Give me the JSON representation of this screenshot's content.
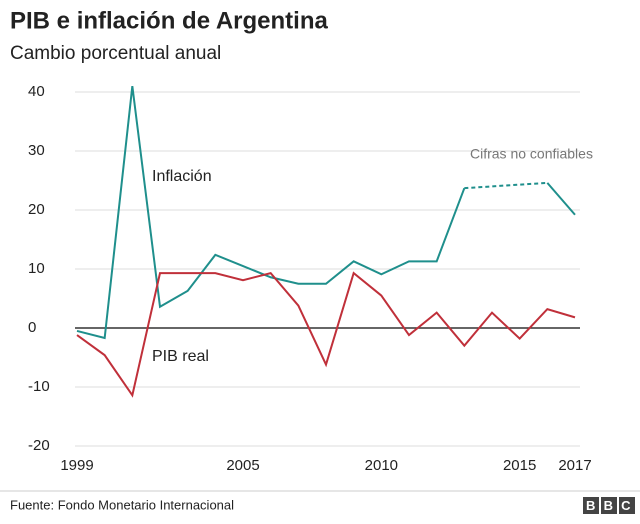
{
  "chart_data": {
    "type": "line",
    "title": "PIB e inflación de Argentina",
    "subtitle": "Cambio porcentual anual",
    "x": [
      1999,
      2000,
      2001,
      2002,
      2003,
      2004,
      2005,
      2006,
      2007,
      2008,
      2009,
      2010,
      2011,
      2012,
      2013,
      2014,
      2015,
      2016,
      2017
    ],
    "series": [
      {
        "name": "Inflación",
        "color": "#1f8f8c",
        "values": [
          -0.5,
          -1.7,
          41,
          3.6,
          6.3,
          12.4,
          10.5,
          8.6,
          7.5,
          7.5,
          11.3,
          9.1,
          11.3,
          11.3,
          23.7,
          null,
          null,
          24.6,
          19.2
        ]
      },
      {
        "name": "PIB real",
        "color": "#c0303a",
        "values": [
          -1.2,
          -4.6,
          -11.4,
          9.3,
          9.3,
          9.3,
          8.1,
          9.3,
          3.8,
          -6.2,
          9.3,
          5.5,
          -1.2,
          2.6,
          -3.0,
          2.6,
          -1.8,
          3.2,
          1.8
        ]
      }
    ],
    "annotations": [
      "Cifras no confiables"
    ],
    "xlim": [
      1999,
      2017
    ],
    "xticks": [
      1999,
      2005,
      2010,
      2015,
      2017
    ],
    "ylim": [
      -20,
      40
    ],
    "yticks": [
      -20,
      -10,
      0,
      10,
      20,
      30,
      40
    ],
    "grid": true,
    "source": "Fuente: Fondo Monetario Internacional",
    "logo": "BBC"
  }
}
